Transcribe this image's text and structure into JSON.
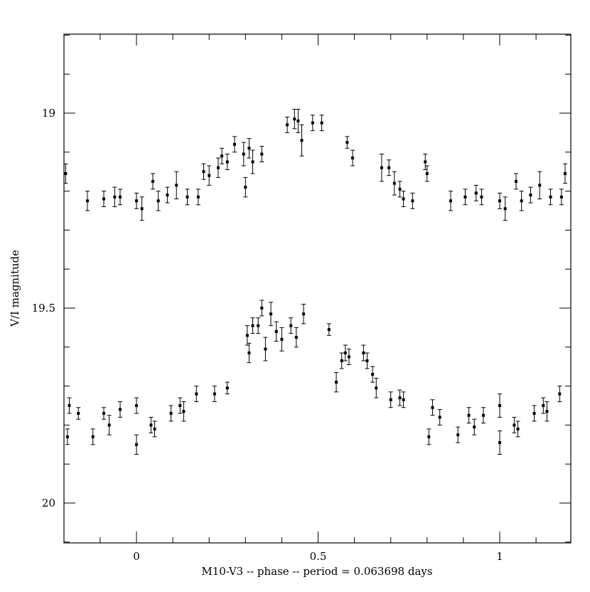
{
  "chart_data": {
    "type": "scatter",
    "title": "",
    "xlabel": "M10-V3 -- phase -- period = 0.063698 days",
    "ylabel": "V/I magnitude",
    "xlim": [
      -0.2,
      1.2
    ],
    "ylim": [
      20.1,
      18.8
    ],
    "y_inverted": true,
    "grid": false,
    "x_ticks": [
      {
        "value": 0,
        "label": "0"
      },
      {
        "value": 0.5,
        "label": "0.5"
      },
      {
        "value": 1,
        "label": "1"
      }
    ],
    "y_ticks": [
      {
        "value": 19.0,
        "label": "19"
      },
      {
        "value": 19.5,
        "label": "19.5"
      },
      {
        "value": 20.0,
        "label": "20"
      }
    ],
    "series": [
      {
        "points": [
          [
            -0.195,
            19.155,
            0.025
          ],
          [
            -0.135,
            19.225,
            0.025
          ],
          [
            -0.09,
            19.22,
            0.02
          ],
          [
            -0.06,
            19.215,
            0.025
          ],
          [
            -0.045,
            19.215,
            0.02
          ],
          [
            0.0,
            19.225,
            0.02
          ],
          [
            0.015,
            19.245,
            0.03
          ],
          [
            0.045,
            19.175,
            0.02
          ],
          [
            0.06,
            19.225,
            0.025
          ],
          [
            0.085,
            19.21,
            0.02
          ],
          [
            0.11,
            19.185,
            0.035
          ],
          [
            0.14,
            19.215,
            0.02
          ],
          [
            0.17,
            19.215,
            0.02
          ],
          [
            0.185,
            19.15,
            0.02
          ],
          [
            0.2,
            19.16,
            0.025
          ],
          [
            0.225,
            19.14,
            0.025
          ],
          [
            0.235,
            19.11,
            0.02
          ],
          [
            0.25,
            19.125,
            0.02
          ],
          [
            0.27,
            19.08,
            0.02
          ],
          [
            0.295,
            19.105,
            0.03
          ],
          [
            0.3,
            19.19,
            0.025
          ],
          [
            0.31,
            19.09,
            0.025
          ],
          [
            0.32,
            19.125,
            0.03
          ],
          [
            0.345,
            19.105,
            0.02
          ],
          [
            0.415,
            19.03,
            0.02
          ],
          [
            0.435,
            19.015,
            0.025
          ],
          [
            0.445,
            19.02,
            0.03
          ],
          [
            0.455,
            19.07,
            0.04
          ],
          [
            0.485,
            19.025,
            0.02
          ],
          [
            0.51,
            19.025,
            0.02
          ],
          [
            0.58,
            19.075,
            0.015
          ],
          [
            0.595,
            19.115,
            0.02
          ],
          [
            0.675,
            19.14,
            0.035
          ],
          [
            0.695,
            19.14,
            0.02
          ],
          [
            0.71,
            19.18,
            0.03
          ],
          [
            0.725,
            19.195,
            0.02
          ],
          [
            0.735,
            19.22,
            0.02
          ],
          [
            0.76,
            19.225,
            0.02
          ],
          [
            0.795,
            19.125,
            0.02
          ],
          [
            0.8,
            19.155,
            0.02
          ],
          [
            0.865,
            19.225,
            0.025
          ],
          [
            0.905,
            19.215,
            0.02
          ],
          [
            0.935,
            19.205,
            0.02
          ],
          [
            0.95,
            19.215,
            0.02
          ],
          [
            1.0,
            19.225,
            0.02
          ],
          [
            1.015,
            19.245,
            0.03
          ],
          [
            1.045,
            19.175,
            0.02
          ],
          [
            1.06,
            19.225,
            0.025
          ],
          [
            1.085,
            19.21,
            0.02
          ],
          [
            1.11,
            19.185,
            0.035
          ],
          [
            1.14,
            19.215,
            0.02
          ],
          [
            1.17,
            19.215,
            0.02
          ],
          [
            1.18,
            19.155,
            0.025
          ]
        ]
      },
      {
        "points": [
          [
            -0.19,
            19.83,
            0.02
          ],
          [
            -0.185,
            19.75,
            0.02
          ],
          [
            -0.16,
            19.77,
            0.015
          ],
          [
            -0.12,
            19.83,
            0.02
          ],
          [
            -0.09,
            19.77,
            0.015
          ],
          [
            -0.075,
            19.8,
            0.025
          ],
          [
            -0.045,
            19.76,
            0.02
          ],
          [
            0.0,
            19.75,
            0.02
          ],
          [
            0.0,
            19.85,
            0.025
          ],
          [
            0.04,
            19.8,
            0.02
          ],
          [
            0.05,
            19.81,
            0.02
          ],
          [
            0.095,
            19.77,
            0.02
          ],
          [
            0.12,
            19.75,
            0.02
          ],
          [
            0.13,
            19.765,
            0.025
          ],
          [
            0.165,
            19.72,
            0.02
          ],
          [
            0.215,
            19.72,
            0.02
          ],
          [
            0.25,
            19.705,
            0.015
          ],
          [
            0.305,
            19.57,
            0.025
          ],
          [
            0.31,
            19.615,
            0.025
          ],
          [
            0.32,
            19.545,
            0.02
          ],
          [
            0.335,
            19.545,
            0.02
          ],
          [
            0.345,
            19.5,
            0.02
          ],
          [
            0.355,
            19.605,
            0.03
          ],
          [
            0.37,
            19.515,
            0.03
          ],
          [
            0.385,
            19.56,
            0.025
          ],
          [
            0.4,
            19.58,
            0.03
          ],
          [
            0.425,
            19.545,
            0.02
          ],
          [
            0.44,
            19.575,
            0.025
          ],
          [
            0.46,
            19.515,
            0.025
          ],
          [
            0.53,
            19.555,
            0.015
          ],
          [
            0.55,
            19.69,
            0.025
          ],
          [
            0.565,
            19.635,
            0.02
          ],
          [
            0.575,
            19.615,
            0.02
          ],
          [
            0.585,
            19.625,
            0.02
          ],
          [
            0.625,
            19.615,
            0.02
          ],
          [
            0.635,
            19.635,
            0.02
          ],
          [
            0.65,
            19.67,
            0.02
          ],
          [
            0.66,
            19.705,
            0.025
          ],
          [
            0.7,
            19.735,
            0.02
          ],
          [
            0.725,
            19.73,
            0.02
          ],
          [
            0.735,
            19.735,
            0.02
          ],
          [
            0.805,
            19.83,
            0.02
          ],
          [
            0.815,
            19.755,
            0.02
          ],
          [
            0.835,
            19.78,
            0.02
          ],
          [
            0.885,
            19.825,
            0.02
          ],
          [
            0.915,
            19.775,
            0.02
          ],
          [
            0.93,
            19.805,
            0.02
          ],
          [
            0.955,
            19.775,
            0.02
          ],
          [
            1.0,
            19.75,
            0.03
          ],
          [
            1.0,
            19.845,
            0.03
          ],
          [
            1.04,
            19.8,
            0.02
          ],
          [
            1.05,
            19.81,
            0.02
          ],
          [
            1.095,
            19.77,
            0.02
          ],
          [
            1.12,
            19.75,
            0.02
          ],
          [
            1.13,
            19.765,
            0.025
          ],
          [
            1.165,
            19.72,
            0.02
          ]
        ]
      }
    ]
  }
}
